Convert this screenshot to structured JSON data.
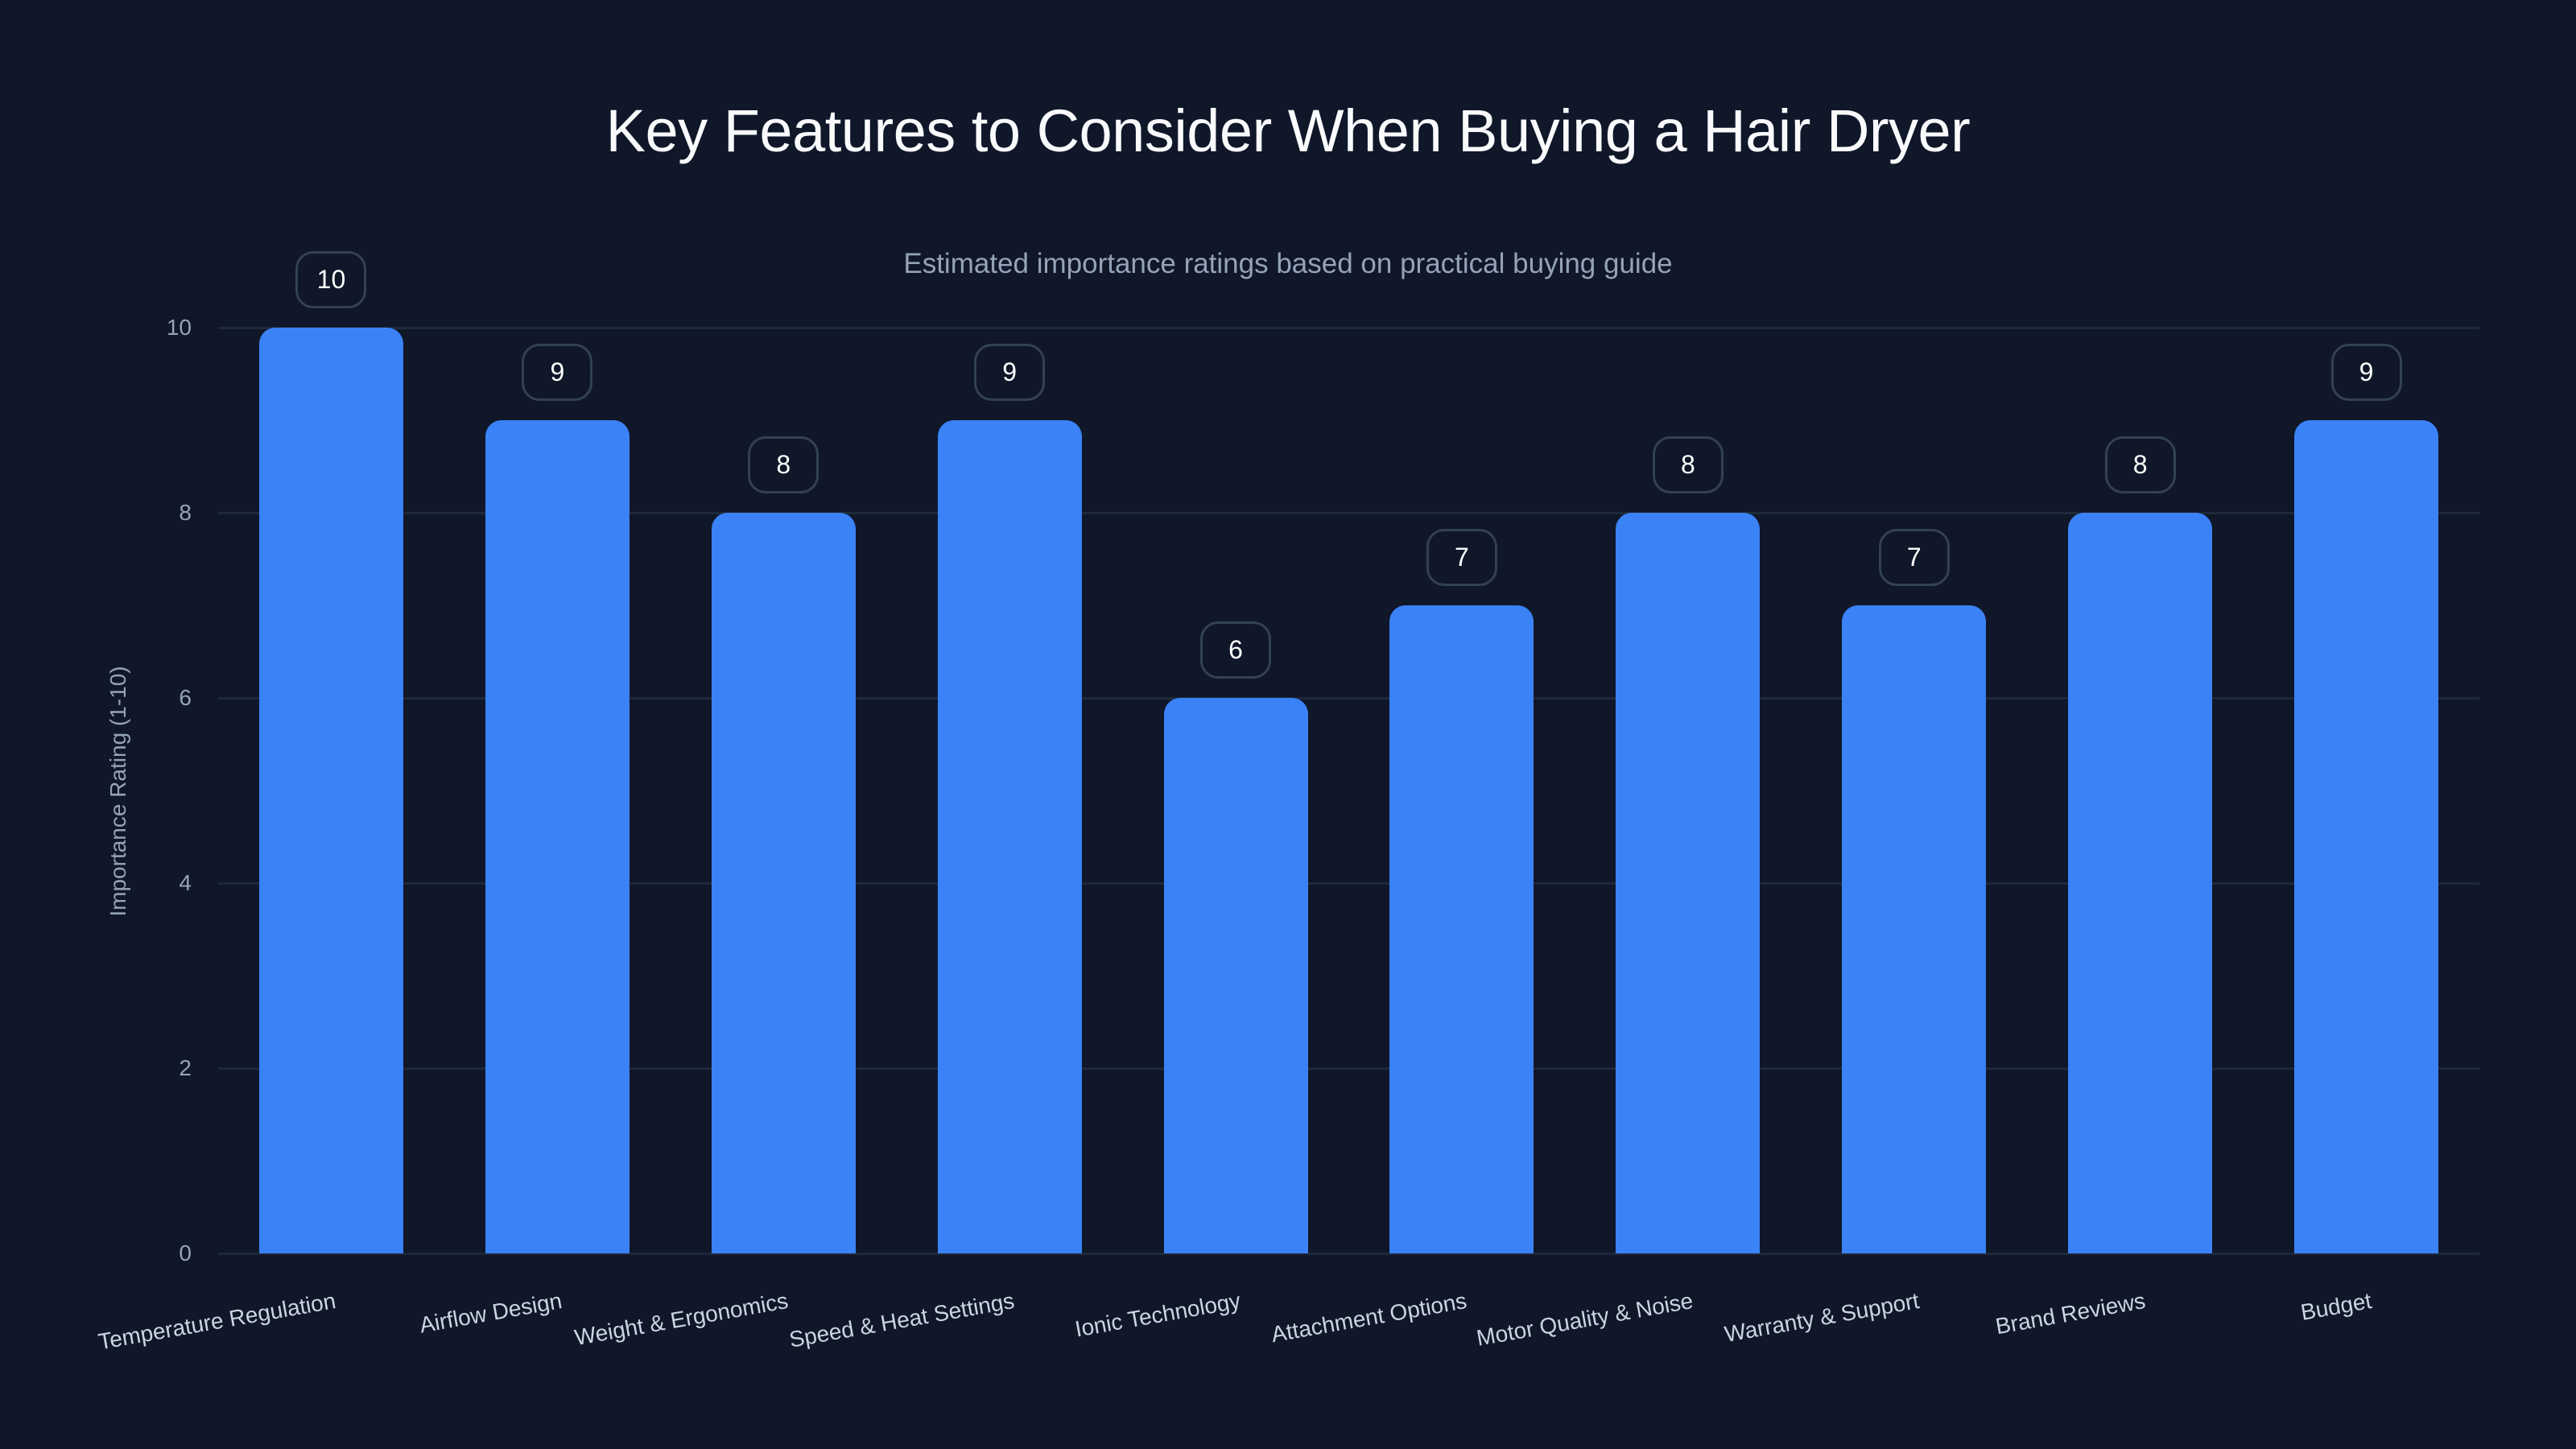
{
  "title": "Key Features to Consider When Buying a Hair Dryer",
  "subtitle": "Estimated importance ratings based on practical buying guide",
  "colors": {
    "background": "#0f1729",
    "bar": "#3b82f6",
    "gridline": "#1e293b",
    "label_box_border": "#334155",
    "title_text": "#f8fafc",
    "axis_text": "#94a3b8"
  },
  "y_axis": {
    "title": "Importance Rating (1-10)",
    "ticks": [
      "0",
      "2",
      "4",
      "6",
      "8",
      "10"
    ]
  },
  "chart_data": {
    "type": "bar",
    "title": "Key Features to Consider When Buying a Hair Dryer",
    "subtitle": "Estimated importance ratings based on practical buying guide",
    "xlabel": "",
    "ylabel": "Importance Rating (1-10)",
    "ylim": [
      0,
      10
    ],
    "yticks": [
      0,
      2,
      4,
      6,
      8,
      10
    ],
    "grid": true,
    "legend": null,
    "data_labels": true,
    "categories": [
      "Temperature Regulation",
      "Airflow Design",
      "Weight & Ergonomics",
      "Speed & Heat Settings",
      "Ionic Technology",
      "Attachment Options",
      "Motor Quality & Noise",
      "Warranty & Support",
      "Brand Reviews",
      "Budget"
    ],
    "values": [
      10,
      9,
      8,
      9,
      6,
      7,
      8,
      7,
      8,
      9
    ]
  }
}
